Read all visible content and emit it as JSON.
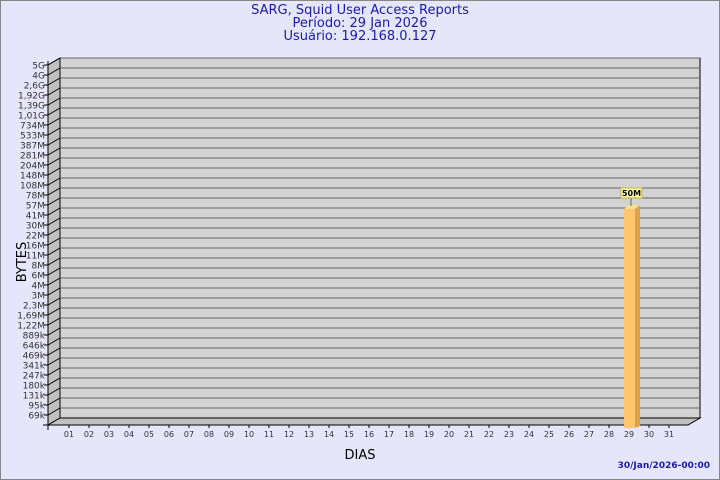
{
  "chart_data": {
    "type": "bar",
    "title": "SARG, Squid User Access Reports",
    "subtitle_lines": [
      "Período: 29 Jan 2026",
      "Usuário: 192.168.0.127"
    ],
    "xlabel": "DIAS",
    "ylabel": "BYTES",
    "y_scale": "log",
    "y_tick_labels": [
      "5G",
      "4G",
      "2,6G",
      "1,92G",
      "1,39G",
      "1,01G",
      "734M",
      "533M",
      "387M",
      "281M",
      "204M",
      "148M",
      "108M",
      "78M",
      "57M",
      "41M",
      "30M",
      "22M",
      "16M",
      "11M",
      "8M",
      "6M",
      "4M",
      "3M",
      "2,3M",
      "1,69M",
      "1,22M",
      "889k",
      "646k",
      "469k",
      "341k",
      "247k",
      "180k",
      "131k",
      "95k",
      "69k"
    ],
    "categories": [
      "01",
      "02",
      "03",
      "04",
      "05",
      "06",
      "07",
      "08",
      "09",
      "10",
      "11",
      "12",
      "13",
      "14",
      "15",
      "16",
      "17",
      "18",
      "19",
      "20",
      "21",
      "22",
      "23",
      "24",
      "25",
      "26",
      "27",
      "28",
      "29",
      "30",
      "31"
    ],
    "bars": [
      {
        "day": "29",
        "value": "50M",
        "label": "50M"
      }
    ],
    "grid": true,
    "colors": {
      "background": "#e6e6fa",
      "plot": "#d3d3d3",
      "bar": "#ffc66e",
      "bar_side": "#dca24c",
      "title": "#1a1aa6"
    }
  },
  "footer": {
    "timestamp": "30/Jan/2026-00:00"
  }
}
